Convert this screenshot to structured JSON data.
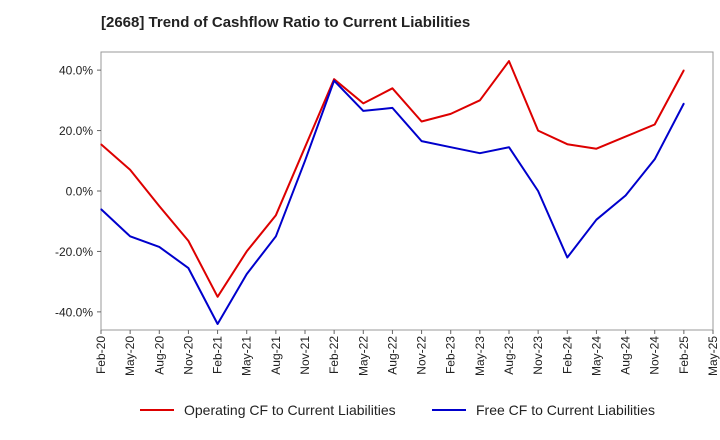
{
  "chart_data": {
    "type": "line",
    "title": "[2668]  Trend of Cashflow Ratio to Current Liabilities",
    "xlabel": "",
    "ylabel": "",
    "ylim": [
      -46,
      46
    ],
    "x_tick_labels": [
      "Feb-20",
      "May-20",
      "Aug-20",
      "Nov-20",
      "Feb-21",
      "May-21",
      "Aug-21",
      "Nov-21",
      "Feb-22",
      "May-22",
      "Aug-22",
      "Nov-22",
      "Feb-23",
      "May-23",
      "Aug-23",
      "Nov-23",
      "Feb-24",
      "May-24",
      "Aug-24",
      "Nov-24",
      "Feb-25",
      "May-25"
    ],
    "y_ticks": [
      40,
      20,
      0,
      -20,
      -40
    ],
    "y_tick_labels": [
      "40.0%",
      "20.0%",
      "0.0%",
      "-20.0%",
      "-40.0%"
    ],
    "grid": true,
    "legend_position": "bottom",
    "categories": [
      "Feb-20",
      "May-20",
      "Aug-20",
      "Nov-20",
      "Feb-21",
      "May-21",
      "Aug-21",
      "Nov-21",
      "Feb-22",
      "May-22",
      "Aug-22",
      "Nov-22",
      "Feb-23",
      "May-23",
      "Aug-23",
      "Nov-23",
      "Feb-24",
      "May-24",
      "Aug-24",
      "Nov-24",
      "Feb-25"
    ],
    "series": [
      {
        "name": "Operating CF to Current Liabilities",
        "color": "#dd0000",
        "values": [
          15.5,
          7.0,
          -5.0,
          -16.5,
          -35.0,
          -20.0,
          -8.0,
          14.5,
          37.0,
          29.0,
          34.0,
          23.0,
          25.5,
          30.0,
          43.0,
          20.0,
          15.5,
          14.0,
          18.0,
          22.0,
          40.0
        ]
      },
      {
        "name": "Free CF to Current Liabilities",
        "color": "#0000cc",
        "values": [
          -6.0,
          -15.0,
          -18.5,
          -25.5,
          -44.0,
          -27.5,
          -15.0,
          10.0,
          36.5,
          26.5,
          27.5,
          16.5,
          14.5,
          12.5,
          14.5,
          0.0,
          -22.0,
          -9.5,
          -1.5,
          10.5,
          29.0
        ]
      }
    ]
  }
}
